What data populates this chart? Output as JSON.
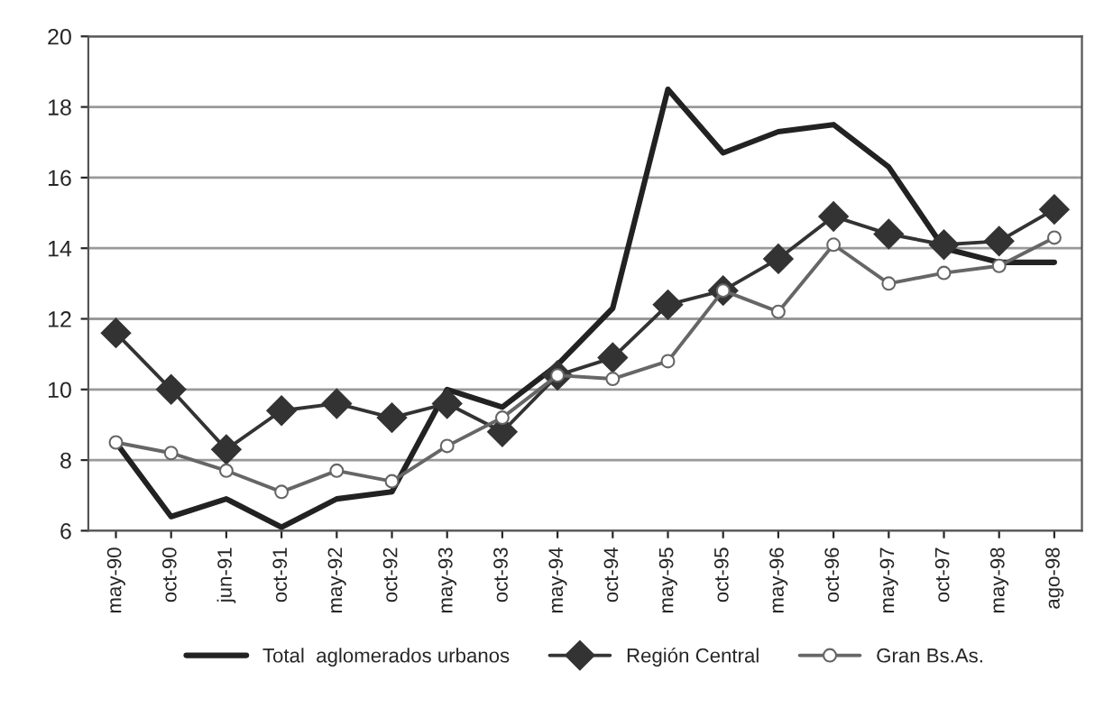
{
  "chart_data": {
    "type": "line",
    "categories": [
      "may-90",
      "oct-90",
      "jun-91",
      "oct-91",
      "may-92",
      "oct-92",
      "may-93",
      "oct-93",
      "may-94",
      "oct-94",
      "may-95",
      "oct-95",
      "may-96",
      "oct-96",
      "may-97",
      "oct-97",
      "may-98",
      "ago-98"
    ],
    "series": [
      {
        "name": "Total  aglomerados urbanos",
        "color": "#222222",
        "marker": "none",
        "values": [
          8.5,
          6.4,
          6.9,
          6.1,
          6.9,
          7.1,
          10.0,
          9.5,
          10.7,
          12.3,
          18.5,
          16.7,
          17.3,
          17.5,
          16.3,
          14.0,
          13.6,
          13.6
        ]
      },
      {
        "name": "Región Central",
        "color": "#333333",
        "marker": "diamond",
        "values": [
          11.6,
          10.0,
          8.3,
          9.4,
          9.6,
          9.2,
          9.6,
          8.8,
          10.4,
          10.9,
          12.4,
          12.8,
          13.7,
          14.9,
          14.4,
          14.1,
          14.2,
          15.1
        ]
      },
      {
        "name": "Gran Bs.As.",
        "color": "#666666",
        "marker": "circle",
        "values": [
          8.5,
          8.2,
          7.7,
          7.1,
          7.7,
          7.4,
          8.4,
          9.2,
          10.4,
          10.3,
          10.8,
          12.8,
          12.2,
          14.1,
          13.0,
          13.3,
          13.5,
          14.3
        ]
      }
    ],
    "ylim": [
      6,
      20
    ],
    "yticks": [
      6,
      8,
      10,
      12,
      14,
      16,
      18,
      20
    ],
    "grid": "y",
    "legend": "bottom"
  }
}
